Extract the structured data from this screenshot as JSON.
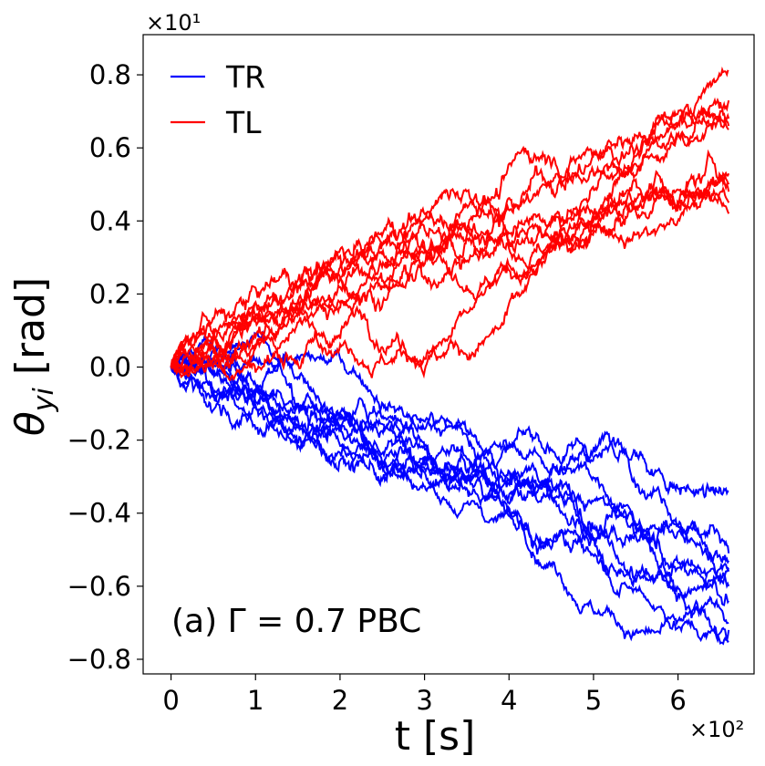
{
  "chart_data": {
    "type": "line",
    "title": "",
    "xlabel": "t [s]",
    "ylabel": "θ_yi [rad]",
    "x_offset": "×10²",
    "y_offset": "×10¹",
    "xlim": [
      -0.33,
      6.9
    ],
    "ylim": [
      -0.84,
      0.91
    ],
    "x_ticks": [
      0,
      1,
      2,
      3,
      4,
      5,
      6
    ],
    "x_tick_labels": [
      "0",
      "1",
      "2",
      "3",
      "4",
      "5",
      "6"
    ],
    "y_ticks": [
      0.8,
      0.6,
      0.4,
      0.2,
      0.0,
      -0.2,
      -0.4,
      -0.6,
      -0.8
    ],
    "y_tick_labels": [
      "0.8",
      "0.6",
      "0.4",
      "0.2",
      "0.0",
      "−0.2",
      "−0.4",
      "−0.6",
      "−0.8"
    ],
    "annotation": "(a) Γ = 0.7 PBC",
    "legend_position": "top-left",
    "x_end": 6.6,
    "series": [
      {
        "name": "TR",
        "color": "#0000ff",
        "runs": 10,
        "final_values": [
          -0.34,
          -0.51,
          -0.53,
          -0.55,
          -0.56,
          -0.6,
          -0.64,
          -0.7,
          -0.72,
          -0.75
        ]
      },
      {
        "name": "TL",
        "color": "#ff0000",
        "runs": 10,
        "final_values": [
          0.81,
          0.73,
          0.68,
          0.66,
          0.65,
          0.53,
          0.5,
          0.48,
          0.45,
          0.42
        ]
      }
    ]
  }
}
